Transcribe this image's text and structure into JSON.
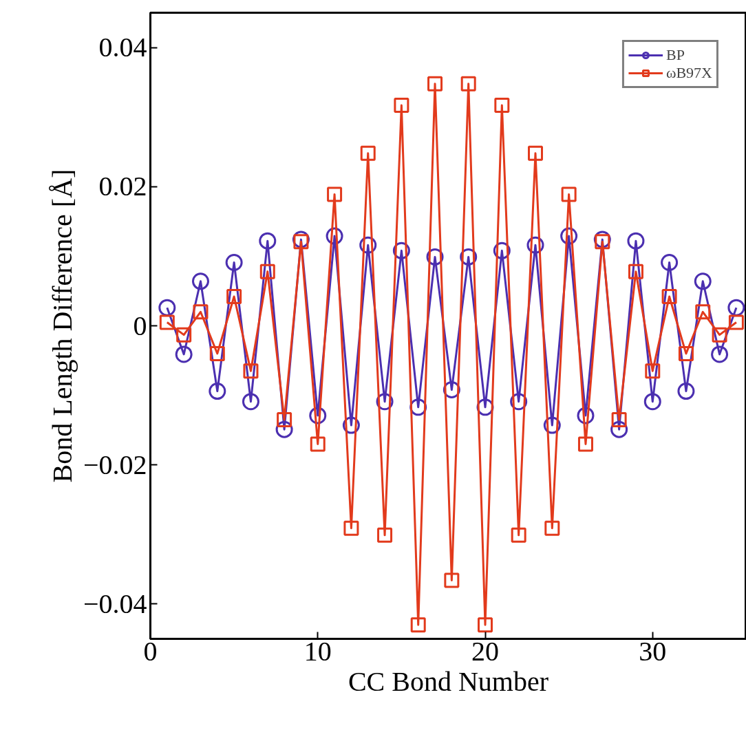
{
  "chart_data": {
    "type": "line",
    "xlabel": "CC Bond Number",
    "ylabel": "Bond Length Difference [Å]",
    "x": [
      1,
      2,
      3,
      4,
      5,
      6,
      7,
      8,
      9,
      10,
      11,
      12,
      13,
      14,
      15,
      16,
      17,
      18,
      19,
      20,
      21,
      22,
      23,
      24,
      25,
      26,
      27,
      28,
      29,
      30,
      31,
      32,
      33,
      34,
      35
    ],
    "series": [
      {
        "name": "BP",
        "color": "#4b2fb0",
        "marker": "circle",
        "values": [
          0.0026,
          -0.0041,
          0.0064,
          -0.0094,
          0.0091,
          -0.0109,
          0.0122,
          -0.0149,
          0.0124,
          -0.0129,
          0.0129,
          -0.0143,
          0.0116,
          -0.0109,
          0.0108,
          -0.0117,
          0.0099,
          -0.0092,
          0.0099,
          -0.0117,
          0.0108,
          -0.0109,
          0.0116,
          -0.0143,
          0.0129,
          -0.0129,
          0.0124,
          -0.0149,
          0.0122,
          -0.0109,
          0.0091,
          -0.0094,
          0.0064,
          -0.0041,
          0.0026
        ]
      },
      {
        "name": "ωB97X",
        "color": "#e23a1c",
        "marker": "square",
        "values": [
          0.0005,
          -0.0013,
          0.002,
          -0.004,
          0.0042,
          -0.0065,
          0.0078,
          -0.0135,
          0.0121,
          -0.017,
          0.0189,
          -0.0291,
          0.0248,
          -0.0301,
          0.0317,
          -0.043,
          0.0348,
          -0.0366,
          0.0348,
          -0.043,
          0.0317,
          -0.0301,
          0.0248,
          -0.0291,
          0.0189,
          -0.017,
          0.0121,
          -0.0135,
          0.0078,
          -0.0065,
          0.0042,
          -0.004,
          0.002,
          -0.0013,
          0.0005
        ]
      }
    ],
    "xlim": [
      0,
      35.6
    ],
    "ylim": [
      -0.045,
      0.045
    ],
    "xticks": [
      0,
      10,
      20,
      30
    ],
    "yticks": [
      {
        "value": -0.04,
        "label": "−0.04"
      },
      {
        "value": -0.02,
        "label": "−0.02"
      },
      0,
      0.02,
      0.04
    ],
    "grid": false,
    "legend": "top right",
    "line_style": "solid"
  }
}
